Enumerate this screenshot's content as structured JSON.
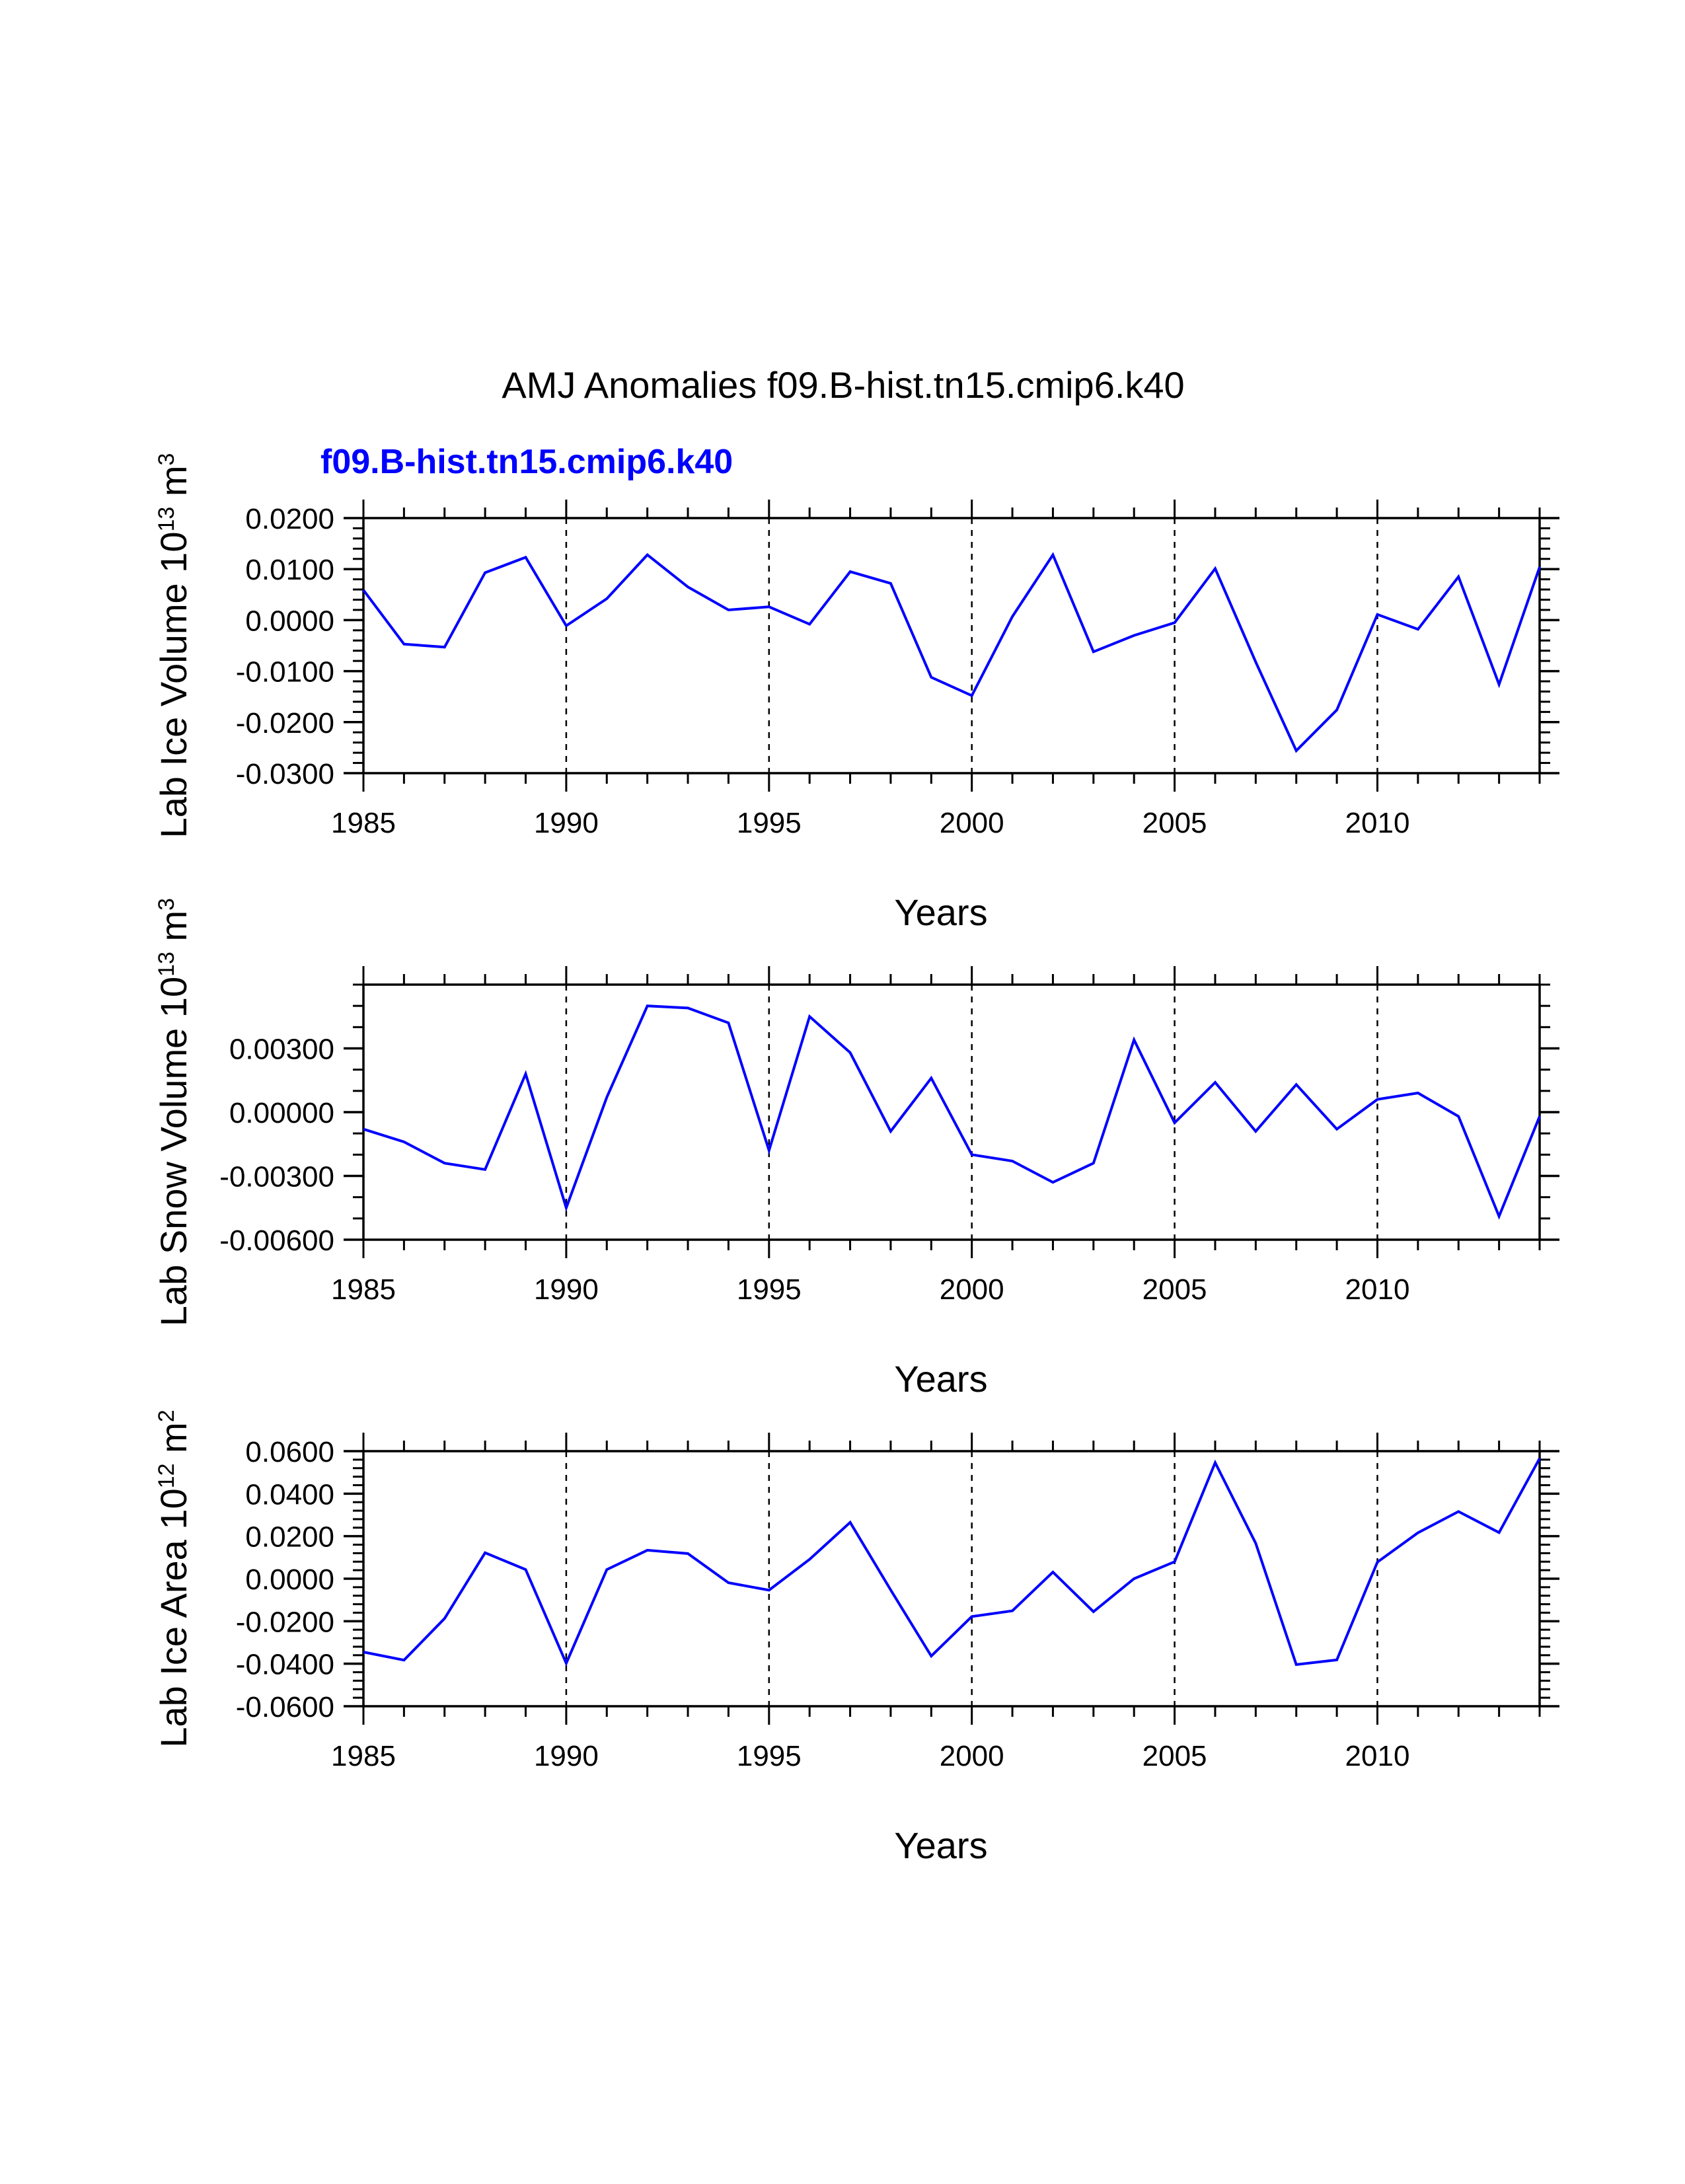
{
  "title": "AMJ Anomalies f09.B-hist.tn15.cmip6.k40",
  "legend_label": "f09.B-hist.tn15.cmip6.k40",
  "colors": {
    "series": "#0000ff",
    "axis": "#000000"
  },
  "chart_data": [
    {
      "type": "line",
      "name": "ice-volume",
      "title": "",
      "xlabel": "Years",
      "ylabel": "Lab Ice Volume 10",
      "ylabel_exp": "13",
      "ylabel_unit": " m",
      "ylabel_unit_exp": "3",
      "xlim": [
        1985,
        2014
      ],
      "ylim": [
        -0.03,
        0.02
      ],
      "x_ticks": [
        1985,
        1990,
        1995,
        2000,
        2005,
        2010
      ],
      "x_tick_labels": [
        "1985",
        "1990",
        "1995",
        "2000",
        "2005",
        "2010"
      ],
      "y_ticks": [
        -0.03,
        -0.02,
        -0.01,
        0.0,
        0.01,
        0.02
      ],
      "y_tick_labels": [
        "-0.0300",
        "-0.0200",
        "-0.0100",
        "0.0000",
        "0.0100",
        "0.0200"
      ],
      "y_minor_step": 0.002,
      "x": [
        1985,
        1986,
        1987,
        1988,
        1989,
        1990,
        1991,
        1992,
        1993,
        1994,
        1995,
        1996,
        1997,
        1998,
        1999,
        2000,
        2001,
        2002,
        2003,
        2004,
        2005,
        2006,
        2007,
        2008,
        2009,
        2010,
        2011,
        2012,
        2013,
        2014
      ],
      "series": [
        {
          "name": "f09.B-hist.tn15.cmip6.k40",
          "values": [
            0.0059,
            -0.0047,
            -0.0053,
            0.0093,
            0.0123,
            -0.0011,
            0.0042,
            0.0128,
            0.0065,
            0.002,
            0.0026,
            -0.0008,
            0.0095,
            0.0072,
            -0.0112,
            -0.0148,
            0.0007,
            0.0128,
            -0.0062,
            -0.003,
            -0.0005,
            0.0101,
            -0.0082,
            -0.0256,
            -0.0176,
            0.0011,
            -0.0018,
            0.0085,
            -0.0126,
            0.0104
          ]
        }
      ]
    },
    {
      "type": "line",
      "name": "snow-volume",
      "title": "",
      "xlabel": "Years",
      "ylabel": "Lab Snow Volume 10",
      "ylabel_exp": "13",
      "ylabel_unit": " m",
      "ylabel_unit_exp": "3",
      "xlim": [
        1985,
        2014
      ],
      "ylim": [
        -0.006,
        0.006
      ],
      "x_ticks": [
        1985,
        1990,
        1995,
        2000,
        2005,
        2010
      ],
      "x_tick_labels": [
        "1985",
        "1990",
        "1995",
        "2000",
        "2005",
        "2010"
      ],
      "y_ticks": [
        -0.006,
        -0.003,
        0.0,
        0.003
      ],
      "y_tick_labels": [
        "-0.00600",
        "-0.00300",
        "0.00000",
        "0.00300"
      ],
      "y_minor_step": 0.001,
      "x": [
        1985,
        1986,
        1987,
        1988,
        1989,
        1990,
        1991,
        1992,
        1993,
        1994,
        1995,
        1996,
        1997,
        1998,
        1999,
        2000,
        2001,
        2002,
        2003,
        2004,
        2005,
        2006,
        2007,
        2008,
        2009,
        2010,
        2011,
        2012,
        2013,
        2014
      ],
      "series": [
        {
          "name": "f09.B-hist.tn15.cmip6.k40",
          "values": [
            -0.0008,
            -0.0014,
            -0.0024,
            -0.0027,
            0.0018,
            -0.0045,
            0.0007,
            0.005,
            0.0049,
            0.0042,
            -0.0018,
            0.0045,
            0.0028,
            -0.0009,
            0.0016,
            -0.002,
            -0.0023,
            -0.0033,
            -0.0024,
            0.0034,
            -0.0005,
            0.0014,
            -0.0009,
            0.0013,
            -0.0008,
            0.0006,
            0.0009,
            -0.0002,
            -0.0049,
            -0.0002
          ]
        }
      ]
    },
    {
      "type": "line",
      "name": "ice-area",
      "title": "",
      "xlabel": "Years",
      "ylabel": "Lab Ice Area 10",
      "ylabel_exp": "12",
      "ylabel_unit": " m",
      "ylabel_unit_exp": "2",
      "xlim": [
        1985,
        2014
      ],
      "ylim": [
        -0.06,
        0.06
      ],
      "x_ticks": [
        1985,
        1990,
        1995,
        2000,
        2005,
        2010
      ],
      "x_tick_labels": [
        "1985",
        "1990",
        "1995",
        "2000",
        "2005",
        "2010"
      ],
      "y_ticks": [
        -0.06,
        -0.04,
        -0.02,
        0.0,
        0.02,
        0.04,
        0.06
      ],
      "y_tick_labels": [
        "-0.0600",
        "-0.0400",
        "-0.0200",
        "0.0000",
        "0.0200",
        "0.0400",
        "0.0600"
      ],
      "y_minor_step": 0.004,
      "x": [
        1985,
        1986,
        1987,
        1988,
        1989,
        1990,
        1991,
        1992,
        1993,
        1994,
        1995,
        1996,
        1997,
        1998,
        1999,
        2000,
        2001,
        2002,
        2003,
        2004,
        2005,
        2006,
        2007,
        2008,
        2009,
        2010,
        2011,
        2012,
        2013,
        2014
      ],
      "series": [
        {
          "name": "f09.B-hist.tn15.cmip6.k40",
          "values": [
            -0.0345,
            -0.0383,
            -0.0187,
            0.0122,
            0.0043,
            -0.0398,
            0.0043,
            0.0134,
            0.0118,
            -0.0019,
            -0.0054,
            0.0091,
            0.0265,
            -0.0053,
            -0.0364,
            -0.0178,
            -0.0151,
            0.0031,
            -0.0155,
            0.0,
            0.008,
            0.0546,
            0.0167,
            -0.0404,
            -0.0382,
            0.0078,
            0.0216,
            0.0316,
            0.0217,
            0.0566
          ]
        }
      ]
    }
  ]
}
